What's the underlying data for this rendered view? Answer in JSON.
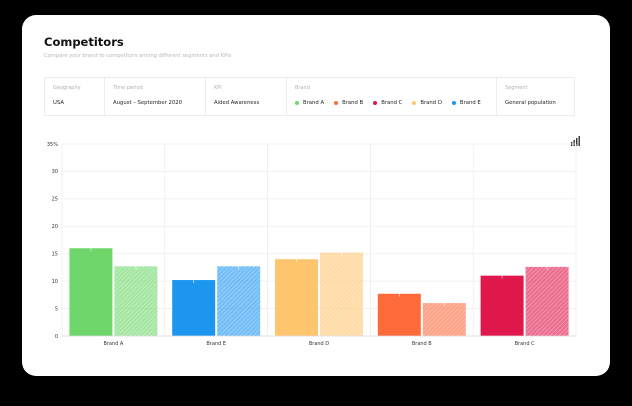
{
  "header": {
    "title": "Competitors",
    "subtitle": "Compare your brand to competitors among different segments and KPIs"
  },
  "filters": {
    "geography": {
      "label": "Geography",
      "value": "USA"
    },
    "time_period": {
      "label": "Time period",
      "value": "August – September 2020"
    },
    "kpi": {
      "label": "KPI",
      "value": "Aided Awareness"
    },
    "brand": {
      "label": "Brand",
      "items": [
        {
          "name": "Brand A",
          "color": "#6fd66b"
        },
        {
          "name": "Brand B",
          "color": "#ff6a3b"
        },
        {
          "name": "Brand C",
          "color": "#e0174a"
        },
        {
          "name": "Brand D",
          "color": "#ffc56e"
        },
        {
          "name": "Brand E",
          "color": "#1d96f0"
        }
      ]
    },
    "segment": {
      "label": "Segment",
      "value": "General population"
    }
  },
  "toolbar": {
    "chart_type_icon": "bar-chart-icon"
  },
  "chart_data": {
    "type": "bar",
    "categories": [
      "Brand A",
      "Brand E",
      "Brand D",
      "Brand B",
      "Brand C"
    ],
    "colors": [
      "#6fd66b",
      "#1d96f0",
      "#ffc56e",
      "#ff6a3b",
      "#e0174a"
    ],
    "series": [
      {
        "values": [
          16,
          10.2,
          14,
          7.7,
          11
        ]
      },
      {
        "values": [
          12.7,
          12.7,
          15.2,
          6,
          12.6
        ]
      }
    ],
    "yticks": [
      0,
      5,
      10,
      15,
      20,
      25,
      30,
      35
    ],
    "ytick_labels": [
      "0",
      "5",
      "10",
      "15",
      "20",
      "25",
      "30",
      "35%"
    ],
    "ylim": [
      0,
      35
    ],
    "grid": true
  }
}
